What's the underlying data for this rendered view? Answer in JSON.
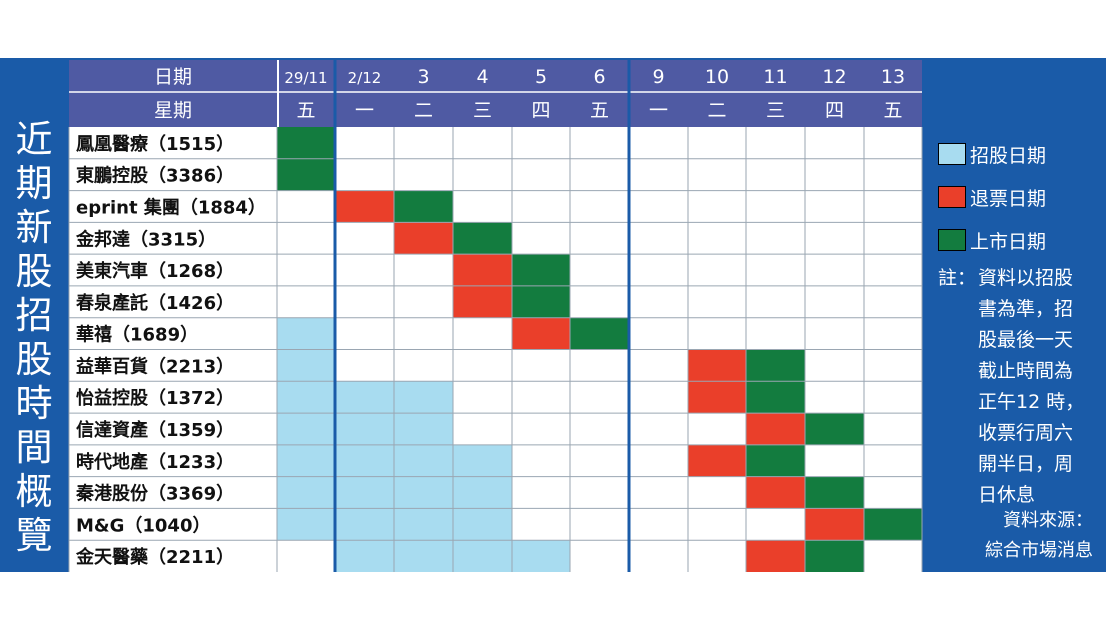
{
  "title": "近期新股招股時間概覽",
  "header": {
    "date_label": "日期",
    "weekday_label": "星期"
  },
  "legend": [
    {
      "label": "招股日期",
      "color": "#a8dcf0"
    },
    {
      "label": "退票日期",
      "color": "#ea3f2a"
    },
    {
      "label": "上市日期",
      "color": "#137c3f"
    }
  ],
  "note": {
    "prefix": "註：",
    "body": "資料以招股書為準，招股最後一天截止時間為正午12 時，收票行周六開半日，周日休息"
  },
  "source": {
    "line1": "資料來源：",
    "line2": "綜合市場消息"
  },
  "chart_data": {
    "type": "table",
    "columns": [
      {
        "date": "29/11",
        "weekday": "五"
      },
      {
        "date": "2/12",
        "weekday": "一"
      },
      {
        "date": "3",
        "weekday": "二"
      },
      {
        "date": "4",
        "weekday": "三"
      },
      {
        "date": "5",
        "weekday": "四"
      },
      {
        "date": "6",
        "weekday": "五"
      },
      {
        "date": "9",
        "weekday": "一"
      },
      {
        "date": "10",
        "weekday": "二"
      },
      {
        "date": "11",
        "weekday": "三"
      },
      {
        "date": "12",
        "weekday": "四"
      },
      {
        "date": "13",
        "weekday": "五"
      }
    ],
    "rows": [
      {
        "name": "鳳凰醫療（1515）",
        "subscription": [],
        "refund": [],
        "listing": [
          0
        ]
      },
      {
        "name": "東鵬控股（3386）",
        "subscription": [],
        "refund": [],
        "listing": [
          0
        ]
      },
      {
        "name": "eprint 集團（1884）",
        "subscription": [],
        "refund": [
          1
        ],
        "listing": [
          2
        ]
      },
      {
        "name": "金邦達（3315）",
        "subscription": [],
        "refund": [
          2
        ],
        "listing": [
          3
        ]
      },
      {
        "name": "美東汽車（1268）",
        "subscription": [],
        "refund": [
          3
        ],
        "listing": [
          4
        ]
      },
      {
        "name": "春泉產託（1426）",
        "subscription": [],
        "refund": [
          3
        ],
        "listing": [
          4
        ]
      },
      {
        "name": "華禧（1689）",
        "subscription": [
          0
        ],
        "refund": [
          4
        ],
        "listing": [
          5
        ]
      },
      {
        "name": "益華百貨（2213）",
        "subscription": [
          0
        ],
        "refund": [
          7
        ],
        "listing": [
          8
        ]
      },
      {
        "name": "怡益控股（1372）",
        "subscription": [
          0,
          1,
          2
        ],
        "refund": [
          7
        ],
        "listing": [
          8
        ]
      },
      {
        "name": "信達資產（1359）",
        "subscription": [
          0,
          1,
          2
        ],
        "refund": [
          8
        ],
        "listing": [
          9
        ]
      },
      {
        "name": "時代地產（1233）",
        "subscription": [
          0,
          1,
          2,
          3
        ],
        "refund": [
          7
        ],
        "listing": [
          8
        ]
      },
      {
        "name": "秦港股份（3369）",
        "subscription": [
          0,
          1,
          2,
          3
        ],
        "refund": [
          8
        ],
        "listing": [
          9
        ]
      },
      {
        "name": "M&G（1040）",
        "subscription": [
          0,
          1,
          2,
          3
        ],
        "refund": [
          9
        ],
        "listing": [
          10
        ]
      },
      {
        "name": "金天醫藥（2211）",
        "subscription": [
          1,
          2,
          3,
          4
        ],
        "refund": [
          8
        ],
        "listing": [
          9
        ]
      }
    ]
  }
}
